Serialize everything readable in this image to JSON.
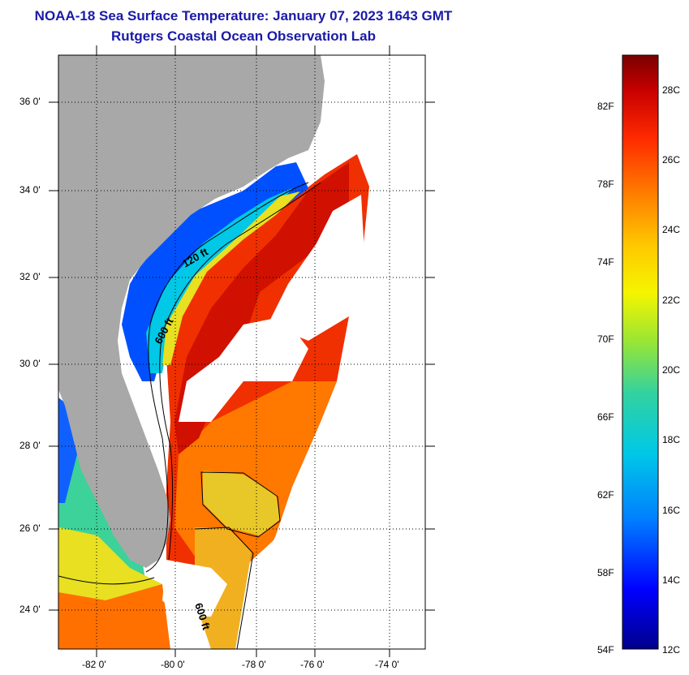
{
  "title": "NOAA-18 Sea Surface Temperature:  January 07, 2023 1643 GMT",
  "subtitle": "Rutgers Coastal Ocean Observation Lab",
  "latitude_labels": [
    "36 0'",
    "34 0'",
    "32 0'",
    "30 0'",
    "28 0'",
    "26 0'",
    "24 0'"
  ],
  "longitude_labels": [
    "-82 0'",
    "-80 0'",
    "-78 0'",
    "-76 0'",
    "-74 0'"
  ],
  "isobath_labels": [
    "120 ft",
    "600 ft",
    "600 ft"
  ],
  "colorbar": {
    "fahrenheit_labels": [
      "82F",
      "78F",
      "74F",
      "70F",
      "66F",
      "62F",
      "58F",
      "54F"
    ],
    "celsius_labels": [
      "28C",
      "26C",
      "24C",
      "22C",
      "20C",
      "18C",
      "16C",
      "14C",
      "12C"
    ],
    "colors": [
      "#7a0000",
      "#c80000",
      "#ff2a00",
      "#ff7a00",
      "#ffc800",
      "#f5f500",
      "#9be632",
      "#32d2a0",
      "#00c8e6",
      "#0080ff",
      "#0000ff",
      "#00008c"
    ]
  },
  "colors": {
    "land": "#a8a8a8",
    "title": "#1a1aa8",
    "gulf_stream": "#f03000",
    "shelf_cold": "#0050ff",
    "bahamas": "#e8c828"
  }
}
